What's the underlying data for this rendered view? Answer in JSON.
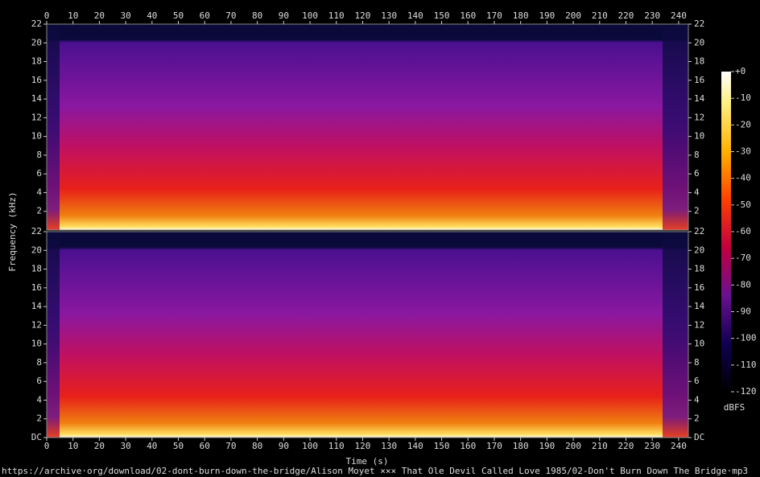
{
  "chart_data": {
    "type": "spectrogram",
    "xlabel": "Time (s)",
    "ylabel": "Frequency (kHz)",
    "xlim": [
      0,
      243.7
    ],
    "xticks": [
      0,
      10,
      20,
      30,
      40,
      50,
      60,
      70,
      80,
      90,
      100,
      110,
      120,
      130,
      140,
      150,
      160,
      170,
      180,
      190,
      200,
      210,
      220,
      230,
      240
    ],
    "panels": [
      {
        "ylim": [
          0,
          22
        ],
        "yticks": [
          2,
          4,
          6,
          8,
          10,
          12,
          14,
          16,
          18,
          20,
          22
        ]
      },
      {
        "ylim": [
          0,
          22
        ],
        "yticks": [
          {
            "value": 0,
            "label": "DC"
          },
          2,
          4,
          6,
          8,
          10,
          12,
          14,
          16,
          18,
          20,
          22
        ]
      }
    ],
    "colorbar": {
      "label": "dBFS",
      "lim": [
        -120,
        0
      ],
      "ticks": [
        {
          "value": 0,
          "label": "+0"
        },
        -10,
        -20,
        -30,
        -40,
        -50,
        -60,
        -70,
        -80,
        -90,
        -100,
        -110,
        -120
      ]
    },
    "caption": "https://archive·org/download/02-dont-burn-down-the-bridge/Alison Moyet ××× That Ole Devil Called Love 1985/02-Don't Burn Down The Bridge·mp3"
  }
}
